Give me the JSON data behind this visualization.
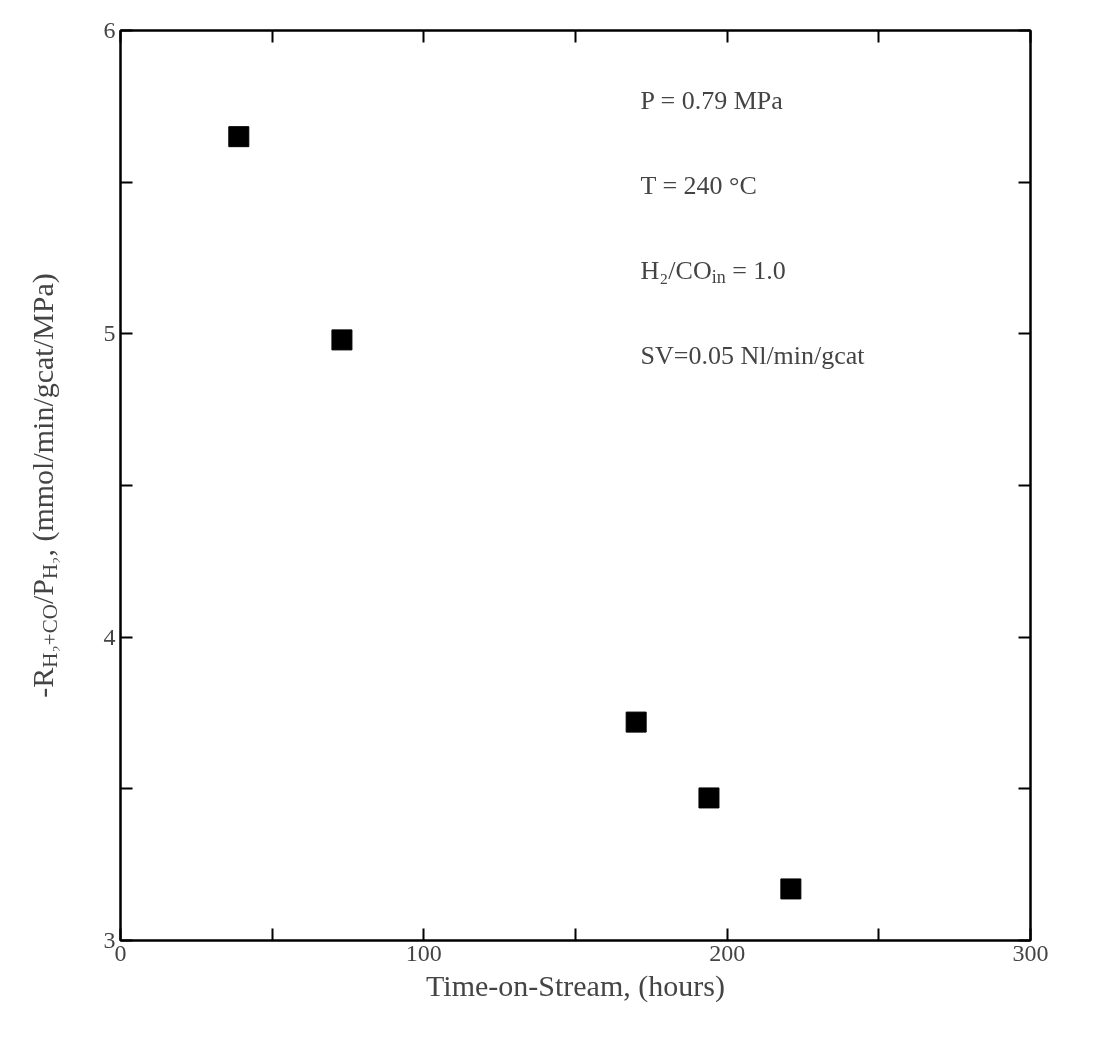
{
  "chart_data": {
    "type": "scatter",
    "xlabel": "Time-on-Stream, (hours)",
    "ylabel": "-R$_{H₂+CO}$/P$_{H₂}$, (mmol/min/gcat/MPa)",
    "x": [
      39,
      73,
      170,
      194,
      221
    ],
    "series": [
      {
        "color": "#000000",
        "values": [
          5.65,
          4.98,
          3.72,
          3.47,
          3.17
        ]
      }
    ],
    "xlim": [
      0,
      300
    ],
    "ylim": [
      3,
      6
    ],
    "xticks": [
      0,
      {
        "value": 50,
        "label": null
      },
      100,
      {
        "value": 150,
        "label": null
      },
      200,
      {
        "value": 250,
        "label": null
      },
      300
    ],
    "yticks": [
      3,
      {
        "value": 3.5,
        "label": null
      },
      4,
      {
        "value": 4.5,
        "label": null
      },
      5,
      {
        "value": 5.5,
        "label": null
      },
      6
    ],
    "marker": "square",
    "grid": false,
    "annotations": [
      "P = 0.79 MPa",
      "T = 240 °C",
      "H₂/CO$_{in}$ = 1.0",
      "SV=0.05 Nl/min/gcat"
    ]
  }
}
